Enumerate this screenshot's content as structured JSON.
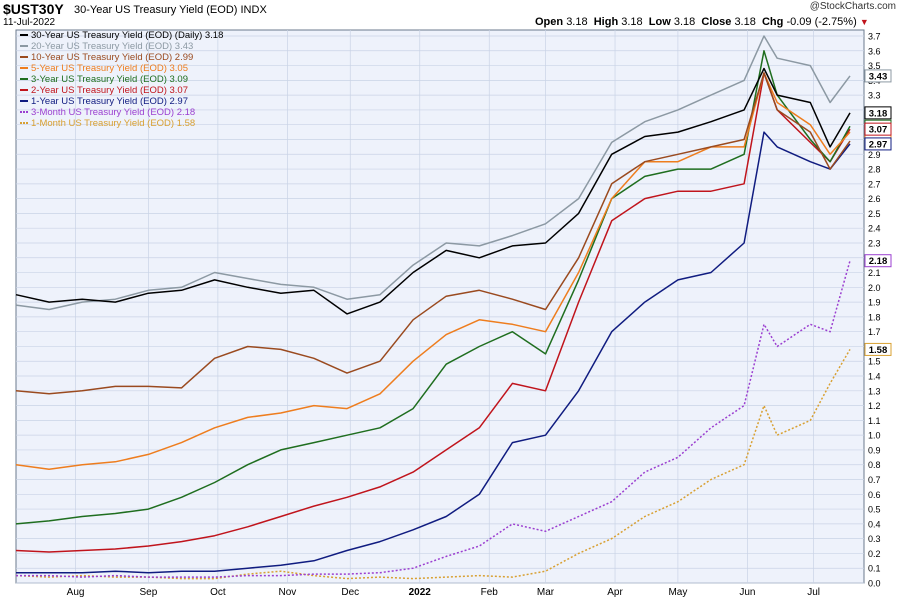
{
  "header": {
    "symbol": "$UST30Y",
    "title": "30-Year US Treasury Yield (EOD)",
    "exchange": "INDX",
    "date": "11-Jul-2022",
    "brand": "@StockCharts.com",
    "ohlc": {
      "open_label": "Open",
      "open": "3.18",
      "high_label": "High",
      "high": "3.18",
      "low_label": "Low",
      "low": "3.18",
      "close_label": "Close",
      "close": "3.18",
      "chg_label": "Chg",
      "chg": "-0.09 (-2.75%)"
    }
  },
  "chart_data": {
    "type": "line",
    "xlabel": "",
    "ylabel": "",
    "ylim": [
      0.0,
      3.7
    ],
    "yticks": [
      "0.0",
      "0.1",
      "0.2",
      "0.3",
      "0.4",
      "0.5",
      "0.6",
      "0.7",
      "0.8",
      "0.9",
      "1.0",
      "1.1",
      "1.2",
      "1.3",
      "1.4",
      "1.5",
      "1.6",
      "1.7",
      "1.8",
      "1.9",
      "2.0",
      "2.1",
      "2.2",
      "2.3",
      "2.4",
      "2.5",
      "2.6",
      "2.7",
      "2.8",
      "2.9",
      "3.0",
      "3.1",
      "3.2",
      "3.3",
      "3.4",
      "3.5",
      "3.6",
      "3.7"
    ],
    "x_ticks": [
      "Aug",
      "Sep",
      "Oct",
      "Nov",
      "Dec",
      "2022",
      "Feb",
      "Mar",
      "Apr",
      "May",
      "Jun",
      "Jul"
    ],
    "x_tick_pos": [
      0.9,
      2.0,
      3.05,
      4.1,
      5.05,
      6.1,
      7.15,
      8.0,
      9.05,
      10.0,
      11.05,
      12.05
    ],
    "x_range": [
      0,
      12.6
    ],
    "grid": true,
    "legend_position": "top-left",
    "series": [
      {
        "name": "30-Year US Treasury Yield (EOD) (Daily)",
        "last": "3.18",
        "color": "#000000",
        "dash": false,
        "x": [
          0,
          0.5,
          1,
          1.5,
          2,
          2.5,
          3,
          3.5,
          4,
          4.5,
          5,
          5.5,
          6,
          6.5,
          7,
          7.5,
          8,
          8.5,
          9,
          9.5,
          10,
          10.5,
          11,
          11.3,
          11.5,
          12,
          12.3,
          12.6
        ],
        "y": [
          1.95,
          1.9,
          1.92,
          1.9,
          1.96,
          1.98,
          2.05,
          2.0,
          1.96,
          1.98,
          1.82,
          1.9,
          2.1,
          2.25,
          2.2,
          2.28,
          2.3,
          2.5,
          2.9,
          3.02,
          3.05,
          3.12,
          3.2,
          3.48,
          3.3,
          3.25,
          2.95,
          3.18
        ]
      },
      {
        "name": "20-Year US Treasury Yield (EOD)",
        "last": "3.43",
        "color": "#8c99a3",
        "dash": false,
        "x": [
          0,
          0.5,
          1,
          1.5,
          2,
          2.5,
          3,
          3.5,
          4,
          4.5,
          5,
          5.5,
          6,
          6.5,
          7,
          7.5,
          8,
          8.5,
          9,
          9.5,
          10,
          10.5,
          11,
          11.3,
          11.5,
          12,
          12.3,
          12.6
        ],
        "y": [
          1.88,
          1.85,
          1.9,
          1.92,
          1.98,
          2.0,
          2.1,
          2.06,
          2.02,
          2.0,
          1.92,
          1.95,
          2.15,
          2.3,
          2.28,
          2.35,
          2.43,
          2.6,
          2.98,
          3.12,
          3.2,
          3.3,
          3.4,
          3.7,
          3.55,
          3.5,
          3.25,
          3.43
        ]
      },
      {
        "name": "10-Year US Treasury Yield (EOD)",
        "last": "2.99",
        "color": "#9a4a1f",
        "dash": false,
        "x": [
          0,
          0.5,
          1,
          1.5,
          2,
          2.5,
          3,
          3.5,
          4,
          4.5,
          5,
          5.5,
          6,
          6.5,
          7,
          7.5,
          8,
          8.5,
          9,
          9.5,
          10,
          10.5,
          11,
          11.3,
          11.5,
          12,
          12.3,
          12.6
        ],
        "y": [
          1.3,
          1.28,
          1.3,
          1.33,
          1.33,
          1.32,
          1.52,
          1.6,
          1.58,
          1.52,
          1.42,
          1.5,
          1.78,
          1.94,
          1.98,
          1.92,
          1.85,
          2.2,
          2.7,
          2.85,
          2.9,
          2.95,
          3.0,
          3.45,
          3.2,
          3.05,
          2.8,
          2.99
        ]
      },
      {
        "name": "5-Year US Treasury Yield (EOD)",
        "last": "3.05",
        "color": "#ee7d1e",
        "dash": false,
        "x": [
          0,
          0.5,
          1,
          1.5,
          2,
          2.5,
          3,
          3.5,
          4,
          4.5,
          5,
          5.5,
          6,
          6.5,
          7,
          7.5,
          8,
          8.5,
          9,
          9.5,
          10,
          10.5,
          11,
          11.3,
          11.5,
          12,
          12.3,
          12.6
        ],
        "y": [
          0.8,
          0.77,
          0.8,
          0.82,
          0.87,
          0.95,
          1.05,
          1.12,
          1.15,
          1.2,
          1.18,
          1.28,
          1.5,
          1.68,
          1.78,
          1.75,
          1.7,
          2.1,
          2.6,
          2.85,
          2.85,
          2.95,
          2.95,
          3.45,
          3.25,
          3.1,
          2.9,
          3.05
        ]
      },
      {
        "name": "3-Year US Treasury Yield (EOD)",
        "last": "3.09",
        "color": "#1f6e1f",
        "dash": false,
        "x": [
          0,
          0.5,
          1,
          1.5,
          2,
          2.5,
          3,
          3.5,
          4,
          4.5,
          5,
          5.5,
          6,
          6.5,
          7,
          7.5,
          8,
          8.5,
          9,
          9.5,
          10,
          10.5,
          11,
          11.3,
          11.5,
          12,
          12.3,
          12.6
        ],
        "y": [
          0.4,
          0.42,
          0.45,
          0.47,
          0.5,
          0.58,
          0.68,
          0.8,
          0.9,
          0.95,
          1.0,
          1.05,
          1.18,
          1.48,
          1.6,
          1.7,
          1.55,
          2.05,
          2.6,
          2.75,
          2.8,
          2.8,
          2.9,
          3.6,
          3.3,
          3.0,
          2.85,
          3.09
        ]
      },
      {
        "name": "2-Year US Treasury Yield (EOD)",
        "last": "3.07",
        "color": "#c0141c",
        "dash": false,
        "x": [
          0,
          0.5,
          1,
          1.5,
          2,
          2.5,
          3,
          3.5,
          4,
          4.5,
          5,
          5.5,
          6,
          6.5,
          7,
          7.5,
          8,
          8.5,
          9,
          9.5,
          10,
          10.5,
          11,
          11.3,
          11.5,
          12,
          12.3,
          12.6
        ],
        "y": [
          0.22,
          0.21,
          0.22,
          0.23,
          0.25,
          0.28,
          0.32,
          0.38,
          0.45,
          0.52,
          0.58,
          0.65,
          0.75,
          0.9,
          1.05,
          1.35,
          1.3,
          1.9,
          2.45,
          2.6,
          2.65,
          2.65,
          2.7,
          3.45,
          3.2,
          2.98,
          2.85,
          3.07
        ]
      },
      {
        "name": "1-Year US Treasury Yield (EOD)",
        "last": "2.97",
        "color": "#101c80",
        "dash": false,
        "x": [
          0,
          0.5,
          1,
          1.5,
          2,
          2.5,
          3,
          3.5,
          4,
          4.5,
          5,
          5.5,
          6,
          6.5,
          7,
          7.5,
          8,
          8.5,
          9,
          9.5,
          10,
          10.5,
          11,
          11.3,
          11.5,
          12,
          12.3,
          12.6
        ],
        "y": [
          0.07,
          0.07,
          0.07,
          0.08,
          0.07,
          0.08,
          0.08,
          0.1,
          0.12,
          0.15,
          0.22,
          0.28,
          0.36,
          0.45,
          0.6,
          0.95,
          1.0,
          1.3,
          1.7,
          1.9,
          2.05,
          2.1,
          2.3,
          3.05,
          2.95,
          2.85,
          2.8,
          2.97
        ]
      },
      {
        "name": "3-Month US Treasury Yield (EOD)",
        "last": "2.18",
        "color": "#9b3fd0",
        "dash": true,
        "x": [
          0,
          0.5,
          1,
          1.5,
          2,
          2.5,
          3,
          3.5,
          4,
          4.5,
          5,
          5.5,
          6,
          6.5,
          7,
          7.5,
          8,
          8.5,
          9,
          9.5,
          10,
          10.5,
          11,
          11.3,
          11.5,
          12,
          12.3,
          12.6
        ],
        "y": [
          0.05,
          0.05,
          0.04,
          0.05,
          0.04,
          0.04,
          0.04,
          0.05,
          0.05,
          0.06,
          0.06,
          0.07,
          0.1,
          0.18,
          0.25,
          0.4,
          0.35,
          0.45,
          0.55,
          0.75,
          0.85,
          1.05,
          1.2,
          1.75,
          1.6,
          1.75,
          1.7,
          2.18
        ]
      },
      {
        "name": "1-Month US Treasury Yield (EOD)",
        "last": "1.58",
        "color": "#d8a032",
        "dash": true,
        "x": [
          0,
          0.5,
          1,
          1.5,
          2,
          2.5,
          3,
          3.5,
          4,
          4.5,
          5,
          5.5,
          6,
          6.5,
          7,
          7.5,
          8,
          8.5,
          9,
          9.5,
          10,
          10.5,
          11,
          11.3,
          11.5,
          12,
          12.3,
          12.6
        ],
        "y": [
          0.05,
          0.04,
          0.05,
          0.04,
          0.04,
          0.03,
          0.03,
          0.06,
          0.08,
          0.05,
          0.03,
          0.04,
          0.03,
          0.04,
          0.05,
          0.04,
          0.08,
          0.2,
          0.3,
          0.45,
          0.55,
          0.7,
          0.8,
          1.2,
          1.0,
          1.1,
          1.35,
          1.58
        ]
      }
    ],
    "value_labels": [
      "3.43",
      "3.18",
      "3.09",
      "3.05",
      "2.99",
      "2.18",
      "1.58"
    ]
  }
}
